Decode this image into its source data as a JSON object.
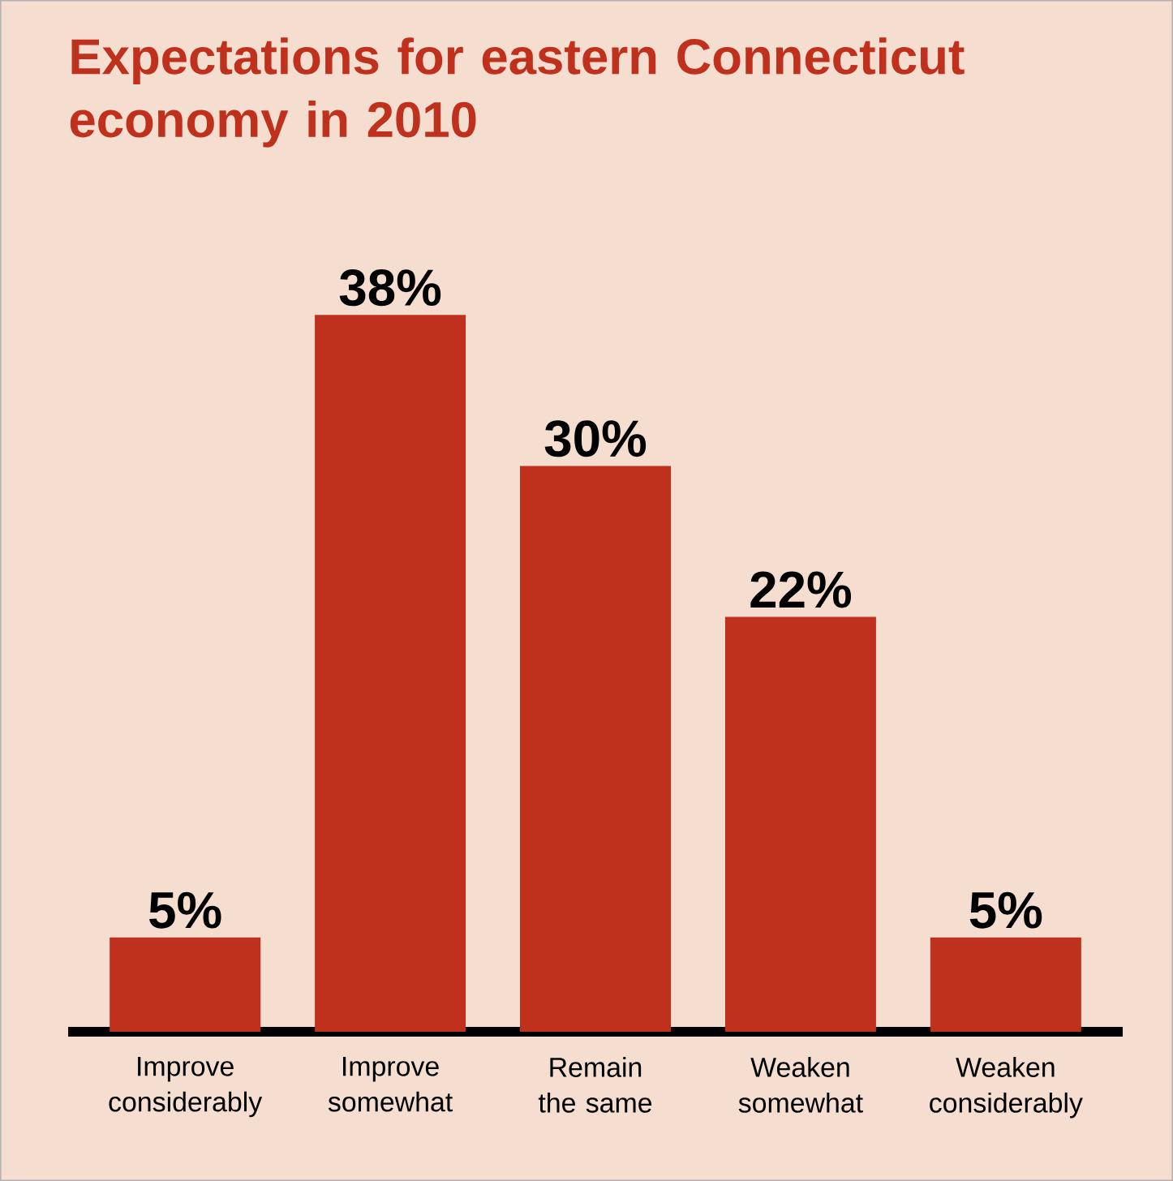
{
  "chart_data": {
    "type": "bar",
    "title": "Expectations for eastern Connecticut economy in 2010",
    "categories": [
      "Improve considerably",
      "Improve somewhat",
      "Remain the same",
      "Weaken somewhat",
      "Weaken considerably"
    ],
    "values": [
      5,
      38,
      30,
      22,
      5
    ],
    "value_labels": [
      "5%",
      "38%",
      "30%",
      "22%",
      "5%"
    ],
    "color": "#c0311d"
  }
}
